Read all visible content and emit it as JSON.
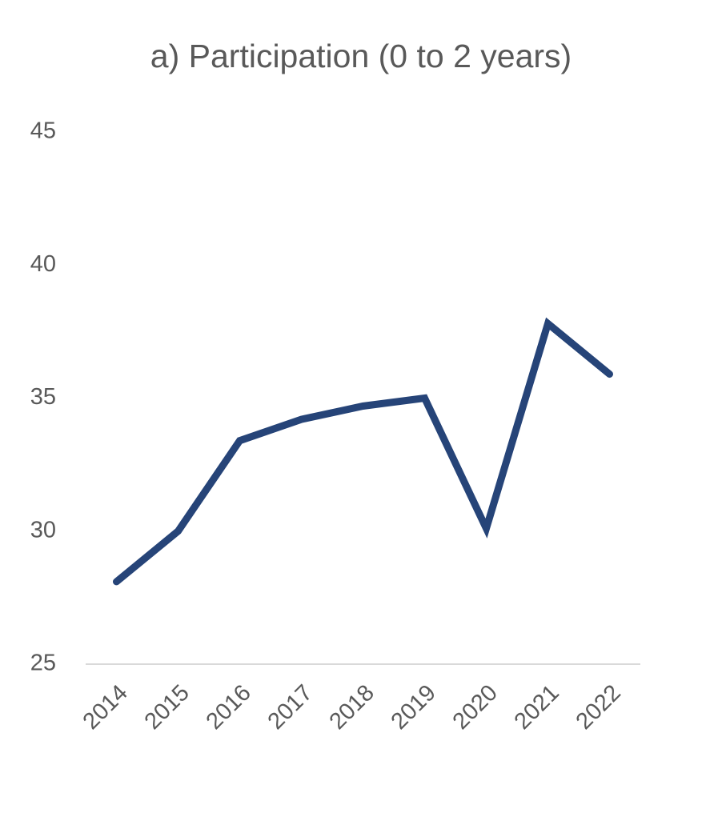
{
  "chart_data": {
    "type": "line",
    "title": "a) Participation (0 to 2 years)",
    "categories": [
      "2014",
      "2015",
      "2016",
      "2017",
      "2018",
      "2019",
      "2020",
      "2021",
      "2022"
    ],
    "series": [
      {
        "name": "Participation",
        "color": "#264478",
        "values": [
          28.1,
          30.0,
          33.4,
          34.2,
          34.7,
          35.0,
          30.1,
          37.8,
          35.9
        ]
      }
    ],
    "ylim": [
      25,
      45
    ],
    "yticks": [
      25,
      30,
      35,
      40,
      45
    ]
  }
}
